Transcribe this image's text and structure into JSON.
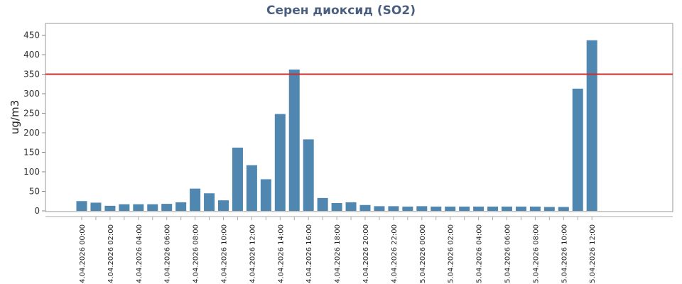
{
  "chart_data": {
    "type": "bar",
    "title": "Серен диоксид (SO2)",
    "xlabel": "",
    "ylabel": "ug/m3",
    "ylim": [
      0,
      480
    ],
    "yticks": [
      0,
      50,
      100,
      150,
      200,
      250,
      300,
      350,
      400,
      450
    ],
    "grid": false,
    "legend": "none",
    "bar_color": "#4f87b0",
    "threshold": {
      "value": 350,
      "color": "#d62a2a"
    },
    "tick_labels": [
      "14.04.2026 00:00",
      "14.04.2026 02:00",
      "14.04.2026 04:00",
      "14.04.2026 06:00",
      "14.04.2026 08:00",
      "14.04.2026 10:00",
      "14.04.2026 12:00",
      "14.04.2026 14:00",
      "14.04.2026 16:00",
      "14.04.2026 18:00",
      "14.04.2026 20:00",
      "14.04.2026 22:00",
      "15.04.2026 00:00",
      "15.04.2026 02:00",
      "15.04.2026 04:00",
      "15.04.2026 06:00",
      "15.04.2026 08:00",
      "15.04.2026 10:00",
      "15.04.2026 12:00"
    ],
    "categories": [
      "14.04.2026 00:00",
      "14.04.2026 01:00",
      "14.04.2026 02:00",
      "14.04.2026 03:00",
      "14.04.2026 04:00",
      "14.04.2026 05:00",
      "14.04.2026 06:00",
      "14.04.2026 07:00",
      "14.04.2026 08:00",
      "14.04.2026 09:00",
      "14.04.2026 10:00",
      "14.04.2026 11:00",
      "14.04.2026 12:00",
      "14.04.2026 13:00",
      "14.04.2026 14:00",
      "14.04.2026 15:00",
      "14.04.2026 16:00",
      "14.04.2026 17:00",
      "14.04.2026 18:00",
      "14.04.2026 19:00",
      "14.04.2026 20:00",
      "14.04.2026 21:00",
      "14.04.2026 22:00",
      "14.04.2026 23:00",
      "15.04.2026 00:00",
      "15.04.2026 01:00",
      "15.04.2026 02:00",
      "15.04.2026 03:00",
      "15.04.2026 04:00",
      "15.04.2026 05:00",
      "15.04.2026 06:00",
      "15.04.2026 07:00",
      "15.04.2026 08:00",
      "15.04.2026 09:00",
      "15.04.2026 10:00",
      "15.04.2026 11:00",
      "15.04.2026 12:00"
    ],
    "values": [
      25,
      21,
      13,
      17,
      17,
      17,
      18,
      22,
      57,
      45,
      27,
      162,
      117,
      81,
      248,
      362,
      183,
      33,
      20,
      22,
      15,
      12,
      12,
      11,
      12,
      11,
      11,
      11,
      11,
      11,
      11,
      11,
      11,
      10,
      10,
      313,
      437
    ]
  }
}
